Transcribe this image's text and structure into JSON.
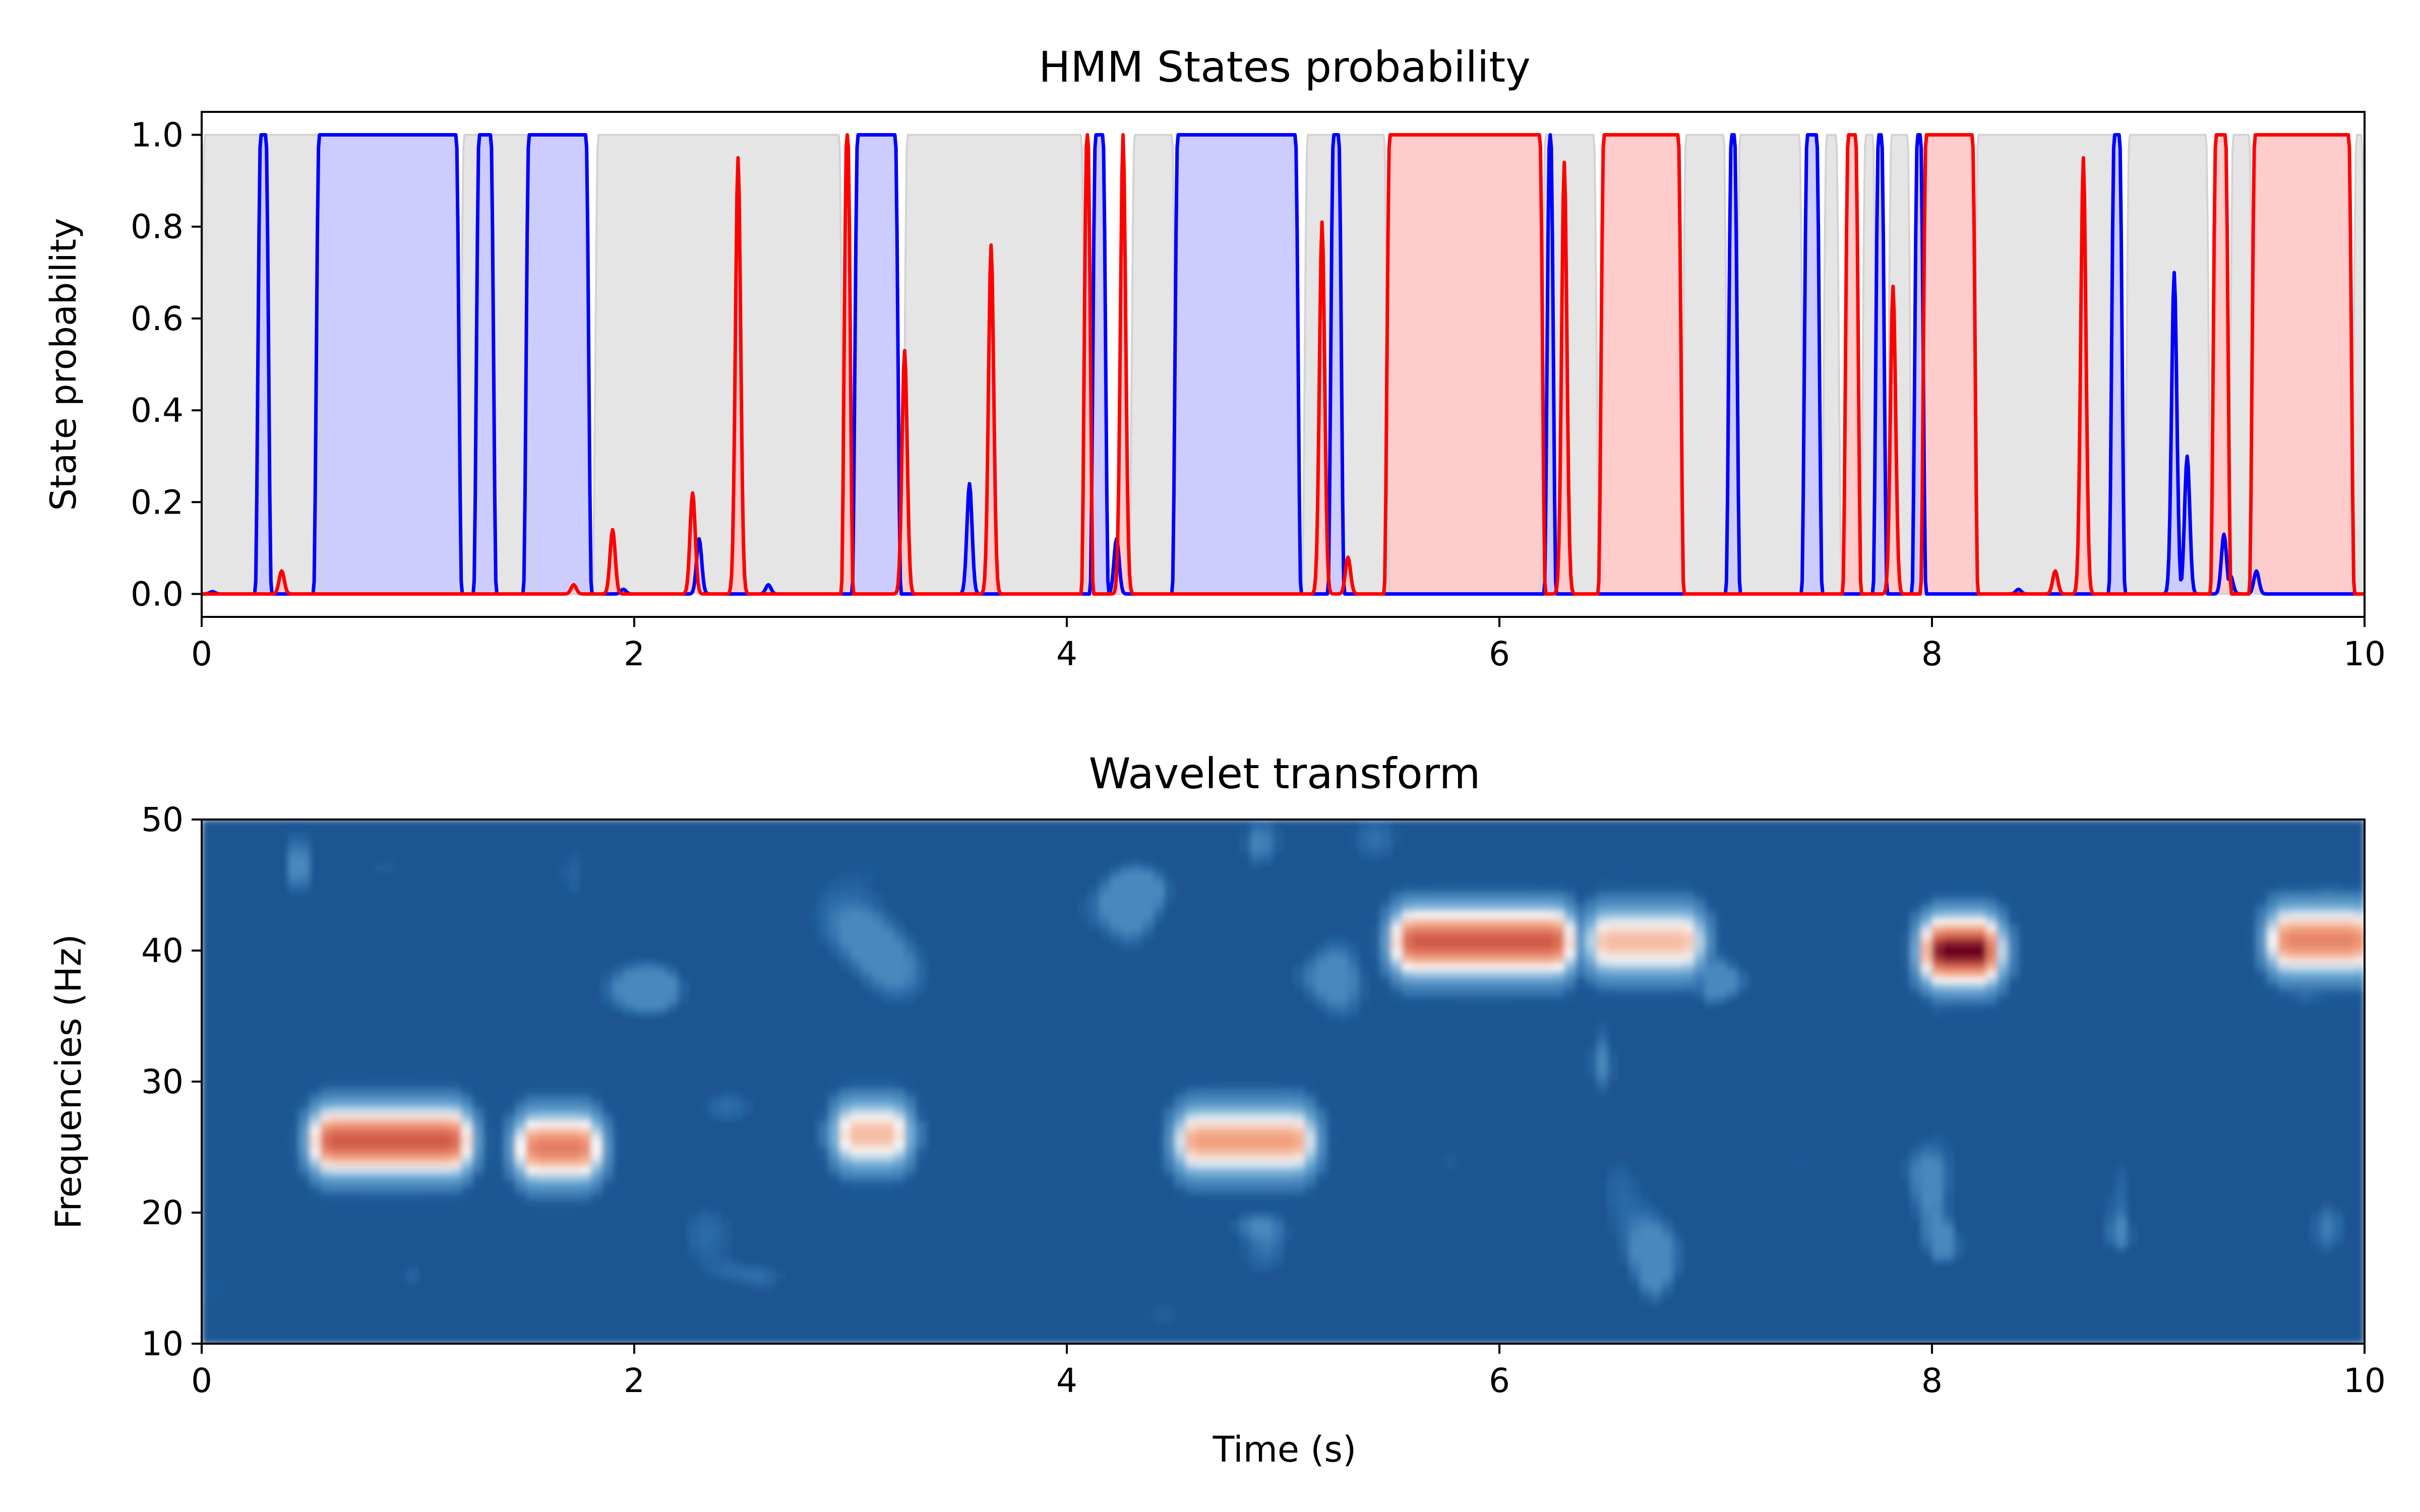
{
  "chart_data": [
    {
      "type": "line",
      "title": "HMM States probability",
      "xlabel": "",
      "ylabel": "State probability",
      "xlim": [
        0,
        10
      ],
      "ylim": [
        -0.05,
        1.05
      ],
      "x_ticks": [
        "0",
        "2",
        "4",
        "6",
        "8",
        "10"
      ],
      "y_ticks": [
        "0.0",
        "0.2",
        "0.4",
        "0.6",
        "0.8",
        "1.0"
      ],
      "grid": false,
      "series": [
        {
          "color": "#d3d3d3",
          "fill": "#e5e5e5",
          "role": "background state",
          "intervals": [
            [
              0.0,
              0.55
            ],
            [
              1.2,
              1.52
            ],
            [
              1.82,
              2.96
            ],
            [
              3.25,
              4.08
            ],
            [
              4.3,
              4.5
            ],
            [
              5.1,
              5.48
            ],
            [
              6.2,
              6.45
            ],
            [
              6.85,
              7.05
            ],
            [
              7.1,
              7.4
            ],
            [
              7.5,
              7.57
            ],
            [
              7.68,
              7.74
            ],
            [
              7.8,
              7.9
            ],
            [
              8.2,
              8.88
            ],
            [
              8.9,
              9.28
            ],
            [
              9.38,
              9.48
            ],
            [
              9.95,
              10.0
            ]
          ]
        },
        {
          "color": "#0000ff",
          "fill": "#ccccff",
          "role": "state blue",
          "intervals": [
            [
              0.26,
              0.31
            ],
            [
              0.53,
              1.19
            ],
            [
              1.27,
              1.35
            ],
            [
              1.5,
              1.79
            ],
            [
              3.02,
              3.22
            ],
            [
              4.12,
              4.18
            ],
            [
              4.5,
              5.07
            ],
            [
              5.22,
              5.27
            ],
            [
              6.22,
              6.25
            ],
            [
              7.06,
              7.1
            ],
            [
              7.41,
              7.48
            ],
            [
              7.74,
              7.78
            ],
            [
              7.92,
              7.96
            ],
            [
              8.83,
              8.88
            ]
          ],
          "peaks": [
            [
              0.05,
              0.005
            ],
            [
              1.95,
              0.01
            ],
            [
              2.3,
              0.12
            ],
            [
              2.62,
              0.02
            ],
            [
              3.55,
              0.24
            ],
            [
              4.23,
              0.12
            ],
            [
              8.4,
              0.01
            ],
            [
              9.12,
              0.7
            ],
            [
              9.18,
              0.3
            ],
            [
              9.35,
              0.13
            ],
            [
              9.38,
              0.04
            ],
            [
              9.5,
              0.05
            ]
          ]
        },
        {
          "color": "#ff0000",
          "fill": "#ffcccc",
          "role": "state red",
          "intervals": [
            [
              2.97,
              3.0
            ],
            [
              4.08,
              4.11
            ],
            [
              5.48,
              6.2
            ],
            [
              6.47,
              6.84
            ],
            [
              7.6,
              7.66
            ],
            [
              7.96,
              8.2
            ],
            [
              9.3,
              9.37
            ],
            [
              9.48,
              9.94
            ]
          ],
          "peaks": [
            [
              0.37,
              0.05
            ],
            [
              1.72,
              0.02
            ],
            [
              1.9,
              0.14
            ],
            [
              2.27,
              0.22
            ],
            [
              2.48,
              0.95
            ],
            [
              3.25,
              0.53
            ],
            [
              3.65,
              0.76
            ],
            [
              4.26,
              1.0
            ],
            [
              5.18,
              0.81
            ],
            [
              5.3,
              0.08
            ],
            [
              6.3,
              0.94
            ],
            [
              7.82,
              0.67
            ],
            [
              8.57,
              0.05
            ],
            [
              8.7,
              0.95
            ]
          ]
        }
      ]
    },
    {
      "type": "heatmap",
      "title": "Wavelet transform",
      "xlabel": "Time (s)",
      "ylabel": "Frequencies (Hz)",
      "xlim": [
        0,
        10
      ],
      "ylim": [
        10,
        50
      ],
      "x_ticks": [
        "0",
        "2",
        "4",
        "6",
        "8",
        "10"
      ],
      "y_ticks": [
        "10",
        "20",
        "30",
        "40",
        "50"
      ],
      "colormap": "RdBu_r",
      "colors": {
        "low": "#08306b",
        "mid": "#f7f7f7",
        "high": "#67001f"
      },
      "hotspots": [
        {
          "t": [
            0.6,
            1.15
          ],
          "f": 25.5,
          "power": 0.82
        },
        {
          "t": [
            1.55,
            1.75
          ],
          "f": 25.0,
          "power": 0.72
        },
        {
          "t": [
            3.02,
            3.18
          ],
          "f": 26.0,
          "power": 0.55
        },
        {
          "t": [
            4.6,
            5.05
          ],
          "f": 25.5,
          "power": 0.62
        },
        {
          "t": [
            5.6,
            6.25
          ],
          "f": 40.7,
          "power": 0.82
        },
        {
          "t": [
            6.5,
            6.85
          ],
          "f": 40.7,
          "power": 0.55
        },
        {
          "t": [
            8.05,
            8.22
          ],
          "f": 40.0,
          "power": 1.0
        },
        {
          "t": [
            9.65,
            9.95
          ],
          "f": 40.8,
          "power": 0.7
        }
      ]
    }
  ]
}
